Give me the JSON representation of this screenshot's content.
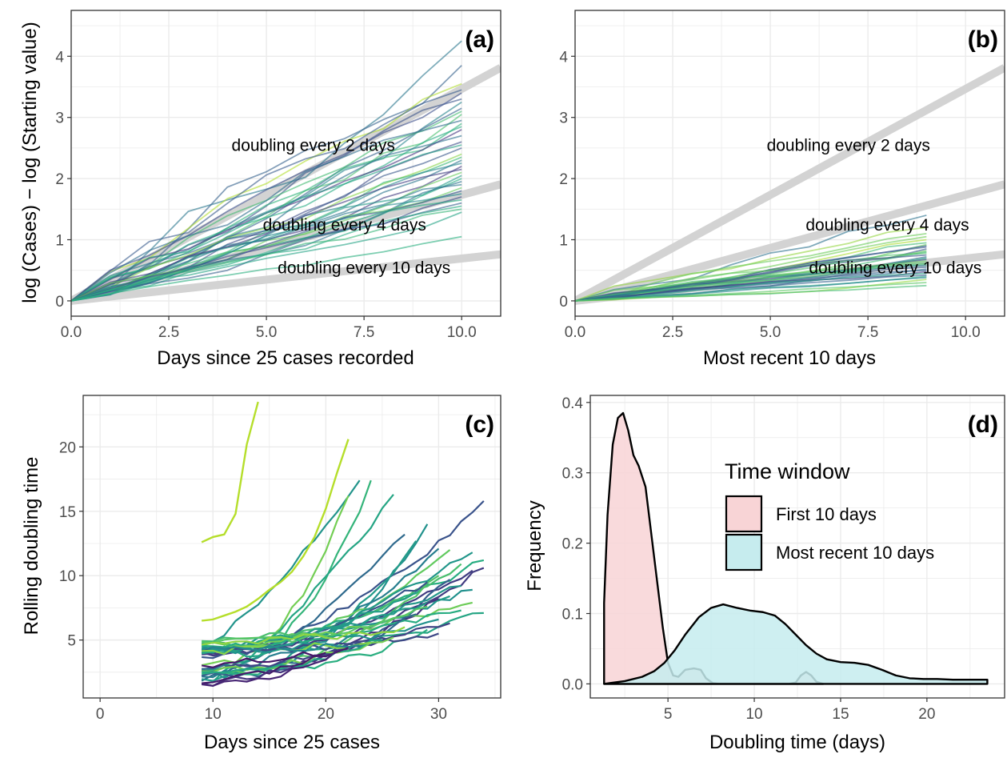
{
  "chart_data": [
    {
      "panel": "(a)",
      "type": "line",
      "xlabel": "Days since 25 cases recorded",
      "ylabel": "log (Cases) − log (Starting value)",
      "xlim": [
        0,
        11
      ],
      "ylim": [
        -0.25,
        4.75
      ],
      "xticks": [
        0,
        2.5,
        5,
        7.5,
        10
      ],
      "xtick_labels": [
        "0.0",
        "2.5",
        "5.0",
        "7.5",
        "10.0"
      ],
      "yticks": [
        0,
        1,
        2,
        3,
        4
      ],
      "ytick_labels": [
        "0",
        "1",
        "2",
        "3",
        "4"
      ],
      "grid": true,
      "reference_lines": [
        {
          "label": "doubling every 2 days",
          "slope": 0.3466
        },
        {
          "label": "doubling every 4 days",
          "slope": 0.1733
        },
        {
          "label": "doubling every 10 days",
          "slope": 0.0693
        }
      ],
      "annotations": [
        {
          "text": "doubling every 2 days",
          "x": 6.2,
          "y": 2.45
        },
        {
          "text": "doubling every 4 days",
          "x": 7.0,
          "y": 1.15
        },
        {
          "text": "doubling every 10 days",
          "x": 7.5,
          "y": 0.45
        }
      ],
      "x_end": 10,
      "end_values": [
        4.25,
        3.85,
        3.55,
        3.45,
        3.4,
        3.3,
        3.25,
        3.15,
        3.1,
        3.05,
        2.95,
        2.9,
        2.85,
        2.8,
        2.7,
        2.6,
        2.55,
        2.5,
        2.4,
        2.35,
        2.3,
        2.25,
        2.2,
        2.15,
        2.1,
        2.05,
        2.0,
        1.95,
        1.9,
        1.85,
        1.8,
        1.75,
        1.7,
        1.65,
        1.6,
        1.55,
        1.5,
        1.45,
        1.05
      ]
    },
    {
      "panel": "(b)",
      "type": "line",
      "xlabel": "Most recent 10 days",
      "ylabel": "",
      "xlim": [
        0,
        11
      ],
      "ylim": [
        -0.25,
        4.75
      ],
      "xticks": [
        0,
        2.5,
        5,
        7.5,
        10
      ],
      "xtick_labels": [
        "0.0",
        "2.5",
        "5.0",
        "7.5",
        "10.0"
      ],
      "yticks": [
        0,
        1,
        2,
        3,
        4
      ],
      "ytick_labels": [
        "0",
        "1",
        "2",
        "3",
        "4"
      ],
      "grid": true,
      "annotations": [
        {
          "text": "doubling every 2 days",
          "x": 7.0,
          "y": 2.45
        },
        {
          "text": "doubling every 4 days",
          "x": 8.0,
          "y": 1.15
        },
        {
          "text": "doubling every 10 days",
          "x": 8.2,
          "y": 0.45
        }
      ],
      "x_end": 9,
      "end_values": [
        1.4,
        1.2,
        1.1,
        1.05,
        1.0,
        0.95,
        0.92,
        0.9,
        0.88,
        0.85,
        0.82,
        0.8,
        0.78,
        0.75,
        0.72,
        0.7,
        0.68,
        0.65,
        0.62,
        0.6,
        0.58,
        0.55,
        0.52,
        0.5,
        0.48,
        0.45,
        0.42,
        0.4,
        0.38,
        0.35,
        0.3,
        0.25
      ]
    },
    {
      "panel": "(c)",
      "type": "line",
      "xlabel": "Days since 25 cases",
      "ylabel": "Rolling doubling time",
      "xlim": [
        -1.5,
        35.5
      ],
      "ylim": [
        0.5,
        24
      ],
      "xticks": [
        0,
        10,
        20,
        30
      ],
      "xtick_labels": [
        "0",
        "10",
        "20",
        "30"
      ],
      "yticks": [
        5,
        10,
        15,
        20
      ],
      "ytick_labels": [
        "5",
        "10",
        "15",
        "20"
      ],
      "grid": true,
      "highlighted_series": [
        {
          "x": [
            9,
            10,
            11,
            12,
            13,
            14
          ],
          "y": [
            12.6,
            13.0,
            13.2,
            14.8,
            20.2,
            23.5
          ]
        },
        {
          "x": [
            9,
            10,
            11,
            12,
            13,
            14,
            15,
            16,
            17,
            18,
            19,
            20,
            21,
            22
          ],
          "y": [
            6.5,
            6.6,
            6.9,
            7.2,
            7.6,
            8.2,
            8.9,
            9.5,
            10.3,
            11.5,
            13.0,
            15.2,
            18.0,
            20.6
          ]
        }
      ],
      "x_start": 9,
      "series_end_points": [
        [
          24,
          17.4
        ],
        [
          23,
          17.4
        ],
        [
          22,
          16.2
        ],
        [
          26,
          16.3
        ],
        [
          34,
          15.8
        ],
        [
          29,
          14.0
        ],
        [
          27,
          13.2
        ],
        [
          28,
          12.7
        ],
        [
          30,
          12.1
        ],
        [
          31,
          12.0
        ],
        [
          33,
          11.8
        ],
        [
          34,
          11.2
        ],
        [
          32,
          10.9
        ],
        [
          34,
          10.6
        ],
        [
          33,
          10.4
        ],
        [
          30,
          10.0
        ],
        [
          31,
          9.7
        ],
        [
          29,
          9.5
        ],
        [
          32,
          9.2
        ],
        [
          33,
          8.9
        ],
        [
          28,
          8.7
        ],
        [
          31,
          8.4
        ],
        [
          30,
          8.2
        ],
        [
          33,
          7.9
        ],
        [
          34,
          7.1
        ],
        [
          29,
          7.6
        ],
        [
          32,
          7.3
        ],
        [
          28,
          7.0
        ],
        [
          30,
          6.6
        ],
        [
          31,
          6.3
        ],
        [
          27,
          6.0
        ],
        [
          29,
          5.8
        ],
        [
          30,
          5.5
        ],
        [
          26,
          5.2
        ],
        [
          25,
          5.0
        ],
        [
          24,
          4.8
        ],
        [
          23,
          4.6
        ],
        [
          22,
          4.4
        ],
        [
          21,
          4.2
        ],
        [
          20,
          4.0
        ]
      ]
    },
    {
      "panel": "(d)",
      "type": "area",
      "xlabel": "Doubling time (days)",
      "ylabel": "Frequency",
      "xlim": [
        0.5,
        24.5
      ],
      "ylim": [
        -0.02,
        0.41
      ],
      "xticks": [
        5,
        10,
        15,
        20
      ],
      "xtick_labels": [
        "5",
        "10",
        "15",
        "20"
      ],
      "yticks": [
        0.0,
        0.1,
        0.2,
        0.3,
        0.4
      ],
      "ytick_labels": [
        "0.0",
        "0.1",
        "0.2",
        "0.3",
        "0.4"
      ],
      "grid": true,
      "legend": {
        "title": "Time window",
        "position": "top-right"
      },
      "series": [
        {
          "name": "First 10 days",
          "color": "#f8d4d6",
          "x": [
            1.3,
            1.3,
            1.5,
            1.8,
            2.1,
            2.4,
            2.7,
            3.0,
            3.3,
            3.7,
            4.0,
            4.4,
            4.7,
            5.0,
            5.3,
            5.6,
            6.0,
            6.5,
            6.9,
            7.2,
            7.6,
            8.0,
            9.0,
            10.0,
            11.0,
            12.0,
            12.4,
            12.7,
            13.0,
            13.3,
            13.6,
            14.0
          ],
          "y": [
            0.0,
            0.115,
            0.24,
            0.34,
            0.378,
            0.385,
            0.36,
            0.325,
            0.31,
            0.28,
            0.22,
            0.14,
            0.08,
            0.03,
            0.012,
            0.01,
            0.02,
            0.022,
            0.02,
            0.008,
            0.001,
            0.0,
            0.0,
            0.0,
            0.0,
            0.0,
            0.002,
            0.012,
            0.017,
            0.012,
            0.003,
            0.0
          ]
        },
        {
          "name": "Most recent 10 days",
          "color": "#c6ecee",
          "x": [
            1.3,
            2.5,
            3.5,
            4.2,
            4.8,
            5.4,
            6.0,
            6.8,
            7.5,
            8.2,
            9.0,
            9.8,
            10.5,
            11.2,
            11.8,
            12.4,
            13.0,
            13.6,
            14.2,
            15.0,
            15.8,
            16.6,
            17.4,
            18.2,
            19.0,
            19.8,
            20.6,
            21.5,
            22.5,
            23.5,
            23.5
          ],
          "y": [
            0.0,
            0.004,
            0.01,
            0.018,
            0.03,
            0.048,
            0.07,
            0.095,
            0.108,
            0.113,
            0.108,
            0.104,
            0.102,
            0.097,
            0.085,
            0.07,
            0.055,
            0.043,
            0.035,
            0.031,
            0.03,
            0.027,
            0.02,
            0.012,
            0.008,
            0.007,
            0.007,
            0.006,
            0.006,
            0.006,
            0.0
          ]
        }
      ]
    }
  ]
}
